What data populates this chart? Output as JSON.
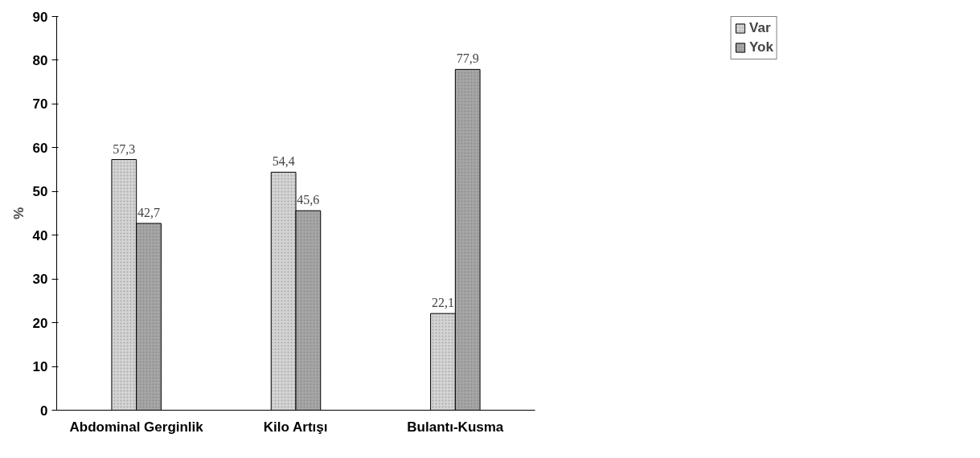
{
  "chart_data": {
    "type": "bar",
    "ylabel": "%",
    "categories": [
      "Abdominal Gerginlik",
      "Kilo Artışı",
      "Bulantı-Kusma"
    ],
    "series": [
      {
        "name": "Var",
        "color": "#d4d4d4",
        "values": [
          57.3,
          54.4,
          22.1
        ],
        "value_labels": [
          "57,3",
          "54,4",
          "22,1"
        ]
      },
      {
        "name": "Yok",
        "color": "#a6a6a6",
        "values": [
          42.7,
          45.6,
          77.9
        ],
        "value_labels": [
          "42,7",
          "45,6",
          "77,9"
        ]
      }
    ],
    "ylim": [
      0,
      90
    ],
    "yticks": [
      0,
      10,
      20,
      30,
      40,
      50,
      60,
      70,
      80,
      90
    ],
    "grid": false,
    "legend": "right"
  }
}
